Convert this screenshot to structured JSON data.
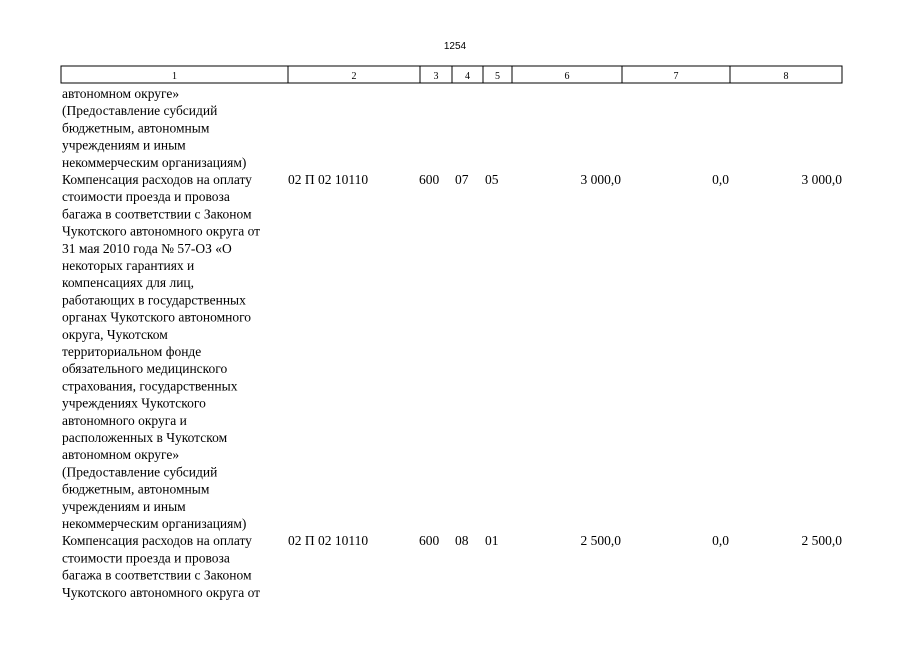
{
  "page_number": "1254",
  "table": {
    "header": [
      "1",
      "2",
      "3",
      "4",
      "5",
      "6",
      "7",
      "8"
    ],
    "rows": [
      {
        "name_lines": [
          "автономном округе»",
          "(Предоставление субсидий",
          "бюджетным, автономным",
          "учреждениям и иным",
          "некоммерческим организациям)"
        ],
        "cells": []
      },
      {
        "name_lines": [
          "Компенсация расходов на оплату",
          "стоимости проезда и провоза",
          "багажа в соответствии с Законом",
          "Чукотского автономного округа от",
          "31 мая 2010 года № 57-ОЗ «О",
          "некоторых гарантиях и",
          "компенсациях для лиц,",
          "работающих в государственных",
          "органах Чукотского автономного",
          "округа, Чукотском",
          "территориальном фонде",
          "обязательного медицинского",
          "страхования, государственных",
          "учреждениях Чукотского",
          "автономного округа и",
          "расположенных в Чукотском",
          "автономном округе»",
          "(Предоставление субсидий",
          "бюджетным, автономным",
          "учреждениям и иным",
          "некоммерческим организациям)"
        ],
        "cells": [
          "02 П 02 10110",
          "600",
          "07",
          "05",
          "3 000,0",
          "0,0",
          "3 000,0"
        ]
      },
      {
        "name_lines": [
          "Компенсация расходов на оплату",
          "стоимости проезда и провоза",
          "багажа в соответствии с Законом",
          "Чукотского автономного округа от"
        ],
        "cells": [
          "02 П 02 10110",
          "600",
          "08",
          "01",
          "2 500,0",
          "0,0",
          "2 500,0"
        ]
      }
    ]
  }
}
